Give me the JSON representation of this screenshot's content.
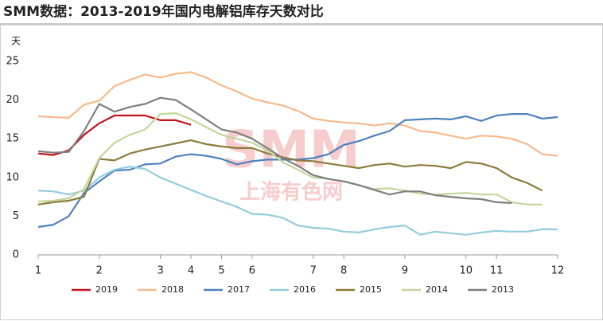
{
  "chart_data": {
    "type": "line",
    "title": "SMM数据：2013-2019年国内电解铝库存天数对比",
    "y_label": "天",
    "watermark": {
      "logo": "SMM",
      "text": "上海有色网"
    },
    "x": [
      0,
      0.5,
      1,
      1.5,
      2,
      2.5,
      3,
      3.5,
      4,
      4.5,
      5,
      5.5,
      6,
      6.5,
      7,
      7.5,
      8,
      8.5,
      9,
      9.5,
      10,
      10.5,
      11,
      11.5,
      12,
      12.5,
      13,
      13.5,
      14,
      14.5,
      15,
      15.5,
      16,
      16.5,
      17
    ],
    "xlim": [
      0,
      17
    ],
    "xticks": [
      {
        "value": 0,
        "label": "1"
      },
      {
        "value": 2,
        "label": "2"
      },
      {
        "value": 4,
        "label": "3"
      },
      {
        "value": 5,
        "label": "4"
      },
      {
        "value": 6,
        "label": "5"
      },
      {
        "value": 7,
        "label": "6"
      },
      {
        "value": 9,
        "label": "7"
      },
      {
        "value": 10,
        "label": "8"
      },
      {
        "value": 12,
        "label": "9"
      },
      {
        "value": 14,
        "label": "10"
      },
      {
        "value": 15,
        "label": "11"
      },
      {
        "value": 17,
        "label": "12"
      }
    ],
    "ylim": [
      0,
      25
    ],
    "yticks": [
      0,
      5,
      10,
      15,
      20,
      25
    ],
    "grid": false,
    "legend": "bottom",
    "series": [
      {
        "name": "2019",
        "color": "#c0141c",
        "values": [
          13.1,
          12.9,
          13.5,
          15.5,
          17.0,
          18.0,
          18.0,
          18.0,
          17.4,
          17.4,
          16.8,
          null,
          null,
          null,
          null,
          null,
          null,
          null,
          null,
          null,
          null,
          null,
          null,
          null,
          null,
          null,
          null,
          null,
          null,
          null,
          null,
          null,
          null,
          null,
          null
        ]
      },
      {
        "name": "2018",
        "color": "#f6b98c",
        "values": [
          17.9,
          17.8,
          17.7,
          19.4,
          19.9,
          21.8,
          22.6,
          23.3,
          22.9,
          23.4,
          23.6,
          22.9,
          21.9,
          21.1,
          20.2,
          19.7,
          19.3,
          18.6,
          17.6,
          17.3,
          17.1,
          17.0,
          16.7,
          17.0,
          16.7,
          16.0,
          15.8,
          15.4,
          15.0,
          15.4,
          15.3,
          15.0,
          14.3,
          13.0,
          12.8
        ]
      },
      {
        "name": "2017",
        "color": "#4f81bd",
        "values": [
          3.6,
          3.9,
          5.0,
          8.0,
          9.5,
          10.9,
          11.0,
          11.7,
          11.8,
          12.7,
          13.0,
          12.8,
          12.4,
          11.7,
          12.1,
          12.3,
          12.3,
          12.3,
          12.5,
          13.0,
          14.2,
          14.7,
          15.4,
          16.0,
          17.4,
          17.5,
          17.6,
          17.5,
          17.9,
          17.3,
          18.0,
          18.2,
          18.2,
          17.6,
          17.8
        ]
      },
      {
        "name": "2016",
        "color": "#93cddd",
        "values": [
          8.3,
          8.2,
          7.8,
          8.3,
          10.0,
          11.0,
          11.4,
          11.1,
          10.0,
          9.2,
          8.4,
          7.6,
          6.9,
          6.2,
          5.3,
          5.2,
          4.8,
          3.8,
          3.5,
          3.4,
          3.0,
          2.9,
          3.3,
          3.6,
          3.8,
          2.6,
          3.0,
          2.8,
          2.6,
          2.9,
          3.1,
          3.0,
          3.0,
          3.3,
          3.3
        ]
      },
      {
        "name": "2015",
        "color": "#8c7b3c",
        "values": [
          6.5,
          6.8,
          7.0,
          7.5,
          12.4,
          12.2,
          13.1,
          13.6,
          14.0,
          14.4,
          14.8,
          14.3,
          14.0,
          13.8,
          13.8,
          13.1,
          12.6,
          12.2,
          12.1,
          11.8,
          11.5,
          11.2,
          11.6,
          11.8,
          11.4,
          11.6,
          11.5,
          11.2,
          12.0,
          11.8,
          11.2,
          10.0,
          9.3,
          8.3,
          null
        ]
      },
      {
        "name": "2014",
        "color": "#c3d69b",
        "values": [
          6.9,
          7.0,
          7.3,
          8.5,
          12.5,
          14.5,
          15.5,
          16.2,
          18.2,
          18.3,
          17.5,
          16.5,
          15.5,
          15.0,
          14.5,
          13.5,
          12.0,
          11.0,
          10.0,
          9.8,
          9.5,
          9.0,
          8.5,
          8.6,
          8.3,
          7.9,
          7.8,
          7.9,
          8.0,
          7.8,
          7.8,
          6.8,
          6.5,
          6.5,
          null
        ]
      },
      {
        "name": "2013",
        "color": "#7f7f7f",
        "values": [
          13.4,
          13.2,
          13.3,
          16.0,
          19.5,
          18.5,
          19.1,
          19.5,
          20.3,
          20.0,
          18.8,
          17.5,
          16.2,
          15.8,
          15.0,
          13.8,
          12.5,
          11.5,
          10.3,
          9.8,
          9.5,
          9.0,
          8.4,
          7.8,
          8.2,
          8.2,
          7.7,
          7.5,
          7.3,
          7.2,
          6.8,
          6.7,
          null,
          null,
          null
        ]
      }
    ]
  }
}
